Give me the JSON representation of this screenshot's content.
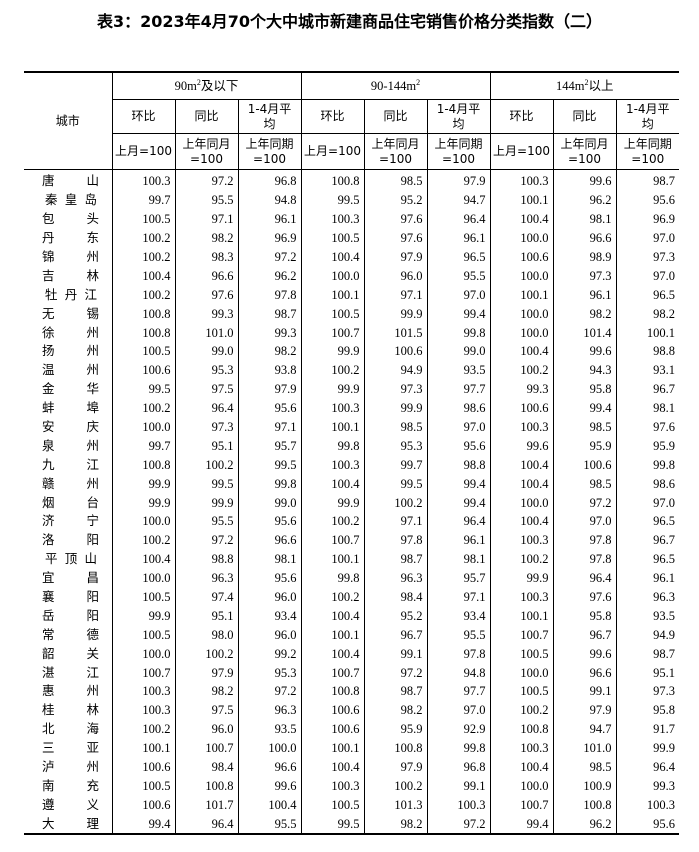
{
  "title": "表3：2023年4月70个大中城市新建商品住宅销售价格分类指数（二）",
  "header": {
    "city": "城市",
    "groups": [
      {
        "pre": "90m",
        "sup": "2",
        "post": "及以下"
      },
      {
        "pre": "90-144m",
        "sup": "2",
        "post": ""
      },
      {
        "pre": "144m",
        "sup": "2",
        "post": "以上"
      }
    ],
    "sub": [
      "环比",
      "同比",
      "1-4月平均"
    ],
    "base": [
      [
        "上月=100"
      ],
      [
        "上年同月",
        "=100"
      ],
      [
        "上年同期",
        "=100"
      ]
    ]
  },
  "rows": [
    [
      "唐山",
      "100.3",
      "97.2",
      "96.8",
      "100.8",
      "98.5",
      "97.9",
      "100.3",
      "99.6",
      "98.7"
    ],
    [
      "秦皇岛",
      "99.7",
      "95.5",
      "94.8",
      "99.5",
      "95.2",
      "94.7",
      "100.1",
      "96.2",
      "95.6"
    ],
    [
      "包头",
      "100.5",
      "97.1",
      "96.1",
      "100.3",
      "97.6",
      "96.4",
      "100.4",
      "98.1",
      "96.9"
    ],
    [
      "丹东",
      "100.2",
      "98.2",
      "96.9",
      "100.5",
      "97.6",
      "96.1",
      "100.0",
      "96.6",
      "97.0"
    ],
    [
      "锦州",
      "100.2",
      "98.3",
      "97.2",
      "100.4",
      "97.9",
      "96.5",
      "100.6",
      "98.9",
      "97.3"
    ],
    [
      "吉林",
      "100.4",
      "96.6",
      "96.2",
      "100.0",
      "96.0",
      "95.5",
      "100.0",
      "97.3",
      "97.0"
    ],
    [
      "牡丹江",
      "100.2",
      "97.6",
      "97.8",
      "100.1",
      "97.1",
      "97.0",
      "100.1",
      "96.1",
      "96.5"
    ],
    [
      "无锡",
      "100.8",
      "99.3",
      "98.7",
      "100.5",
      "99.9",
      "99.4",
      "100.0",
      "98.2",
      "98.2"
    ],
    [
      "徐州",
      "100.8",
      "101.0",
      "99.3",
      "100.7",
      "101.5",
      "99.8",
      "100.0",
      "101.4",
      "100.1"
    ],
    [
      "扬州",
      "100.5",
      "99.0",
      "98.2",
      "99.9",
      "100.6",
      "99.0",
      "100.4",
      "99.6",
      "98.8"
    ],
    [
      "温州",
      "100.6",
      "95.3",
      "93.8",
      "100.2",
      "94.9",
      "93.5",
      "100.2",
      "94.3",
      "93.1"
    ],
    [
      "金华",
      "99.5",
      "97.5",
      "97.9",
      "99.9",
      "97.3",
      "97.7",
      "99.3",
      "95.8",
      "96.7"
    ],
    [
      "蚌埠",
      "100.2",
      "96.4",
      "95.6",
      "100.3",
      "99.9",
      "98.6",
      "100.6",
      "99.4",
      "98.1"
    ],
    [
      "安庆",
      "100.0",
      "97.3",
      "97.1",
      "100.1",
      "98.5",
      "97.0",
      "100.3",
      "98.5",
      "97.6"
    ],
    [
      "泉州",
      "99.7",
      "95.1",
      "95.7",
      "99.8",
      "95.3",
      "95.6",
      "99.6",
      "95.9",
      "95.9"
    ],
    [
      "九江",
      "100.8",
      "100.2",
      "99.5",
      "100.3",
      "99.7",
      "98.8",
      "100.4",
      "100.6",
      "99.8"
    ],
    [
      "赣州",
      "99.9",
      "99.5",
      "99.8",
      "100.4",
      "99.5",
      "99.4",
      "100.4",
      "98.5",
      "98.6"
    ],
    [
      "烟台",
      "99.9",
      "99.9",
      "99.0",
      "99.9",
      "100.2",
      "99.4",
      "100.0",
      "97.2",
      "97.0"
    ],
    [
      "济宁",
      "100.0",
      "95.5",
      "95.6",
      "100.2",
      "97.1",
      "96.4",
      "100.4",
      "97.0",
      "96.5"
    ],
    [
      "洛阳",
      "100.2",
      "97.2",
      "96.6",
      "100.7",
      "97.8",
      "96.1",
      "100.3",
      "97.8",
      "96.7"
    ],
    [
      "平顶山",
      "100.4",
      "98.8",
      "98.1",
      "100.1",
      "98.7",
      "98.1",
      "100.2",
      "97.8",
      "96.5"
    ],
    [
      "宜昌",
      "100.0",
      "96.3",
      "95.6",
      "99.8",
      "96.3",
      "95.7",
      "99.9",
      "96.4",
      "96.1"
    ],
    [
      "襄阳",
      "100.5",
      "97.4",
      "96.0",
      "100.2",
      "98.4",
      "97.1",
      "100.3",
      "97.6",
      "96.3"
    ],
    [
      "岳阳",
      "99.9",
      "95.1",
      "93.4",
      "100.4",
      "95.2",
      "93.4",
      "100.1",
      "95.8",
      "93.5"
    ],
    [
      "常德",
      "100.5",
      "98.0",
      "96.0",
      "100.1",
      "96.7",
      "95.5",
      "100.7",
      "96.7",
      "94.9"
    ],
    [
      "韶关",
      "100.0",
      "100.2",
      "99.2",
      "100.4",
      "99.1",
      "97.8",
      "100.5",
      "99.6",
      "98.7"
    ],
    [
      "湛江",
      "100.7",
      "97.9",
      "95.3",
      "100.7",
      "97.2",
      "94.8",
      "100.0",
      "96.6",
      "95.1"
    ],
    [
      "惠州",
      "100.3",
      "98.2",
      "97.2",
      "100.8",
      "98.7",
      "97.7",
      "100.5",
      "99.1",
      "97.3"
    ],
    [
      "桂林",
      "100.3",
      "97.5",
      "96.3",
      "100.6",
      "98.2",
      "97.0",
      "100.2",
      "97.9",
      "95.8"
    ],
    [
      "北海",
      "100.2",
      "96.0",
      "93.5",
      "100.6",
      "95.9",
      "92.9",
      "100.8",
      "94.7",
      "91.7"
    ],
    [
      "三亚",
      "100.1",
      "100.7",
      "100.0",
      "100.1",
      "100.8",
      "99.8",
      "100.3",
      "101.0",
      "99.9"
    ],
    [
      "泸州",
      "100.6",
      "98.4",
      "96.6",
      "100.4",
      "97.9",
      "96.8",
      "100.4",
      "98.5",
      "96.4"
    ],
    [
      "南充",
      "100.5",
      "100.8",
      "99.6",
      "100.3",
      "100.2",
      "99.1",
      "100.0",
      "100.9",
      "99.3"
    ],
    [
      "遵义",
      "100.6",
      "101.7",
      "100.4",
      "100.5",
      "101.3",
      "100.3",
      "100.7",
      "100.8",
      "100.3"
    ],
    [
      "大理",
      "99.4",
      "96.4",
      "95.5",
      "99.5",
      "98.2",
      "97.2",
      "99.4",
      "96.2",
      "95.6"
    ]
  ]
}
